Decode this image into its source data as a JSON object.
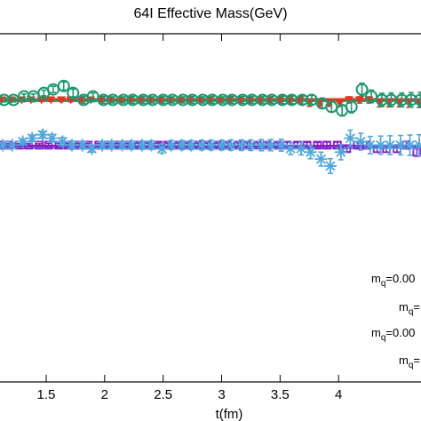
{
  "chart_data": {
    "type": "scatter",
    "title": "64I Effective Mass(GeV)",
    "xlabel": "t(fm)",
    "ylabel": "",
    "x_ticks": [
      "1.5",
      "2",
      "2.5",
      "3",
      "3.5",
      "4"
    ],
    "x_tick_values": [
      1.5,
      2.0,
      2.5,
      3.0,
      3.5,
      4.0
    ],
    "xlim": [
      1.09,
      4.72
    ],
    "ylim": [
      0.0,
      1.0
    ],
    "grid": false,
    "legend_position": "bottom-right",
    "legend": [
      {
        "base": "m",
        "sub": "q",
        "rest": "=0.00"
      },
      {
        "base": "m",
        "sub": "q",
        "rest": "="
      },
      {
        "base": "m",
        "sub": "q",
        "rest": "=0.00"
      },
      {
        "base": "m",
        "sub": "q",
        "rest": "="
      }
    ],
    "series": [
      {
        "marker": "triangle-down",
        "color": "#e8321e",
        "fit_value": 0.812,
        "x": [
          1.12,
          1.2,
          1.29,
          1.37,
          1.46,
          1.54,
          1.63,
          1.71,
          1.8,
          1.88,
          1.97,
          2.05,
          2.14,
          2.22,
          2.31,
          2.39,
          2.48,
          2.56,
          2.65,
          2.73,
          2.82,
          2.9,
          2.99,
          3.07,
          3.16,
          3.24,
          3.33,
          3.41,
          3.5,
          3.58,
          3.67,
          3.75,
          3.84,
          3.92,
          4.01,
          4.09,
          4.18,
          4.26,
          4.35,
          4.43,
          4.52,
          4.6,
          4.69
        ],
        "y": [
          0.81,
          0.81,
          0.81,
          0.81,
          0.81,
          0.81,
          0.81,
          0.81,
          0.81,
          0.81,
          0.81,
          0.81,
          0.81,
          0.81,
          0.81,
          0.81,
          0.81,
          0.81,
          0.81,
          0.81,
          0.81,
          0.81,
          0.81,
          0.81,
          0.81,
          0.81,
          0.81,
          0.81,
          0.81,
          0.81,
          0.81,
          0.8,
          0.8,
          0.8,
          0.8,
          0.81,
          0.81,
          0.81,
          0.8,
          0.8,
          0.8,
          0.8,
          0.8
        ],
        "err": [
          0.004,
          0.004,
          0.004,
          0.004,
          0.004,
          0.004,
          0.005,
          0.005,
          0.005,
          0.005,
          0.005,
          0.005,
          0.005,
          0.005,
          0.005,
          0.006,
          0.006,
          0.006,
          0.006,
          0.006,
          0.006,
          0.006,
          0.006,
          0.006,
          0.007,
          0.007,
          0.007,
          0.007,
          0.007,
          0.007,
          0.008,
          0.008,
          0.008,
          0.008,
          0.009,
          0.009,
          0.009,
          0.009,
          0.01,
          0.01,
          0.01,
          0.011,
          0.011
        ]
      },
      {
        "marker": "circle",
        "color": "#1a9a72",
        "fit_value": 0.807,
        "x": [
          1.14,
          1.22,
          1.31,
          1.39,
          1.48,
          1.56,
          1.65,
          1.73,
          1.82,
          1.9,
          1.99,
          2.07,
          2.16,
          2.24,
          2.33,
          2.41,
          2.5,
          2.58,
          2.67,
          2.75,
          2.84,
          2.92,
          3.01,
          3.09,
          3.18,
          3.26,
          3.35,
          3.43,
          3.52,
          3.6,
          3.69,
          3.77,
          3.86,
          3.94,
          4.03,
          4.11,
          4.2,
          4.28,
          4.37,
          4.45,
          4.54,
          4.62,
          4.7
        ],
        "y": [
          0.81,
          0.81,
          0.82,
          0.82,
          0.83,
          0.84,
          0.85,
          0.83,
          0.81,
          0.82,
          0.81,
          0.81,
          0.81,
          0.81,
          0.81,
          0.81,
          0.81,
          0.81,
          0.81,
          0.81,
          0.81,
          0.81,
          0.81,
          0.81,
          0.81,
          0.81,
          0.81,
          0.81,
          0.81,
          0.81,
          0.81,
          0.81,
          0.8,
          0.79,
          0.78,
          0.79,
          0.84,
          0.82,
          0.81,
          0.81,
          0.81,
          0.81,
          0.81
        ],
        "err": [
          0.006,
          0.006,
          0.007,
          0.007,
          0.008,
          0.009,
          0.012,
          0.011,
          0.01,
          0.01,
          0.01,
          0.009,
          0.009,
          0.01,
          0.01,
          0.009,
          0.01,
          0.009,
          0.009,
          0.01,
          0.009,
          0.01,
          0.009,
          0.01,
          0.01,
          0.01,
          0.01,
          0.01,
          0.011,
          0.011,
          0.012,
          0.013,
          0.014,
          0.015,
          0.016,
          0.017,
          0.018,
          0.018,
          0.019,
          0.02,
          0.02,
          0.021,
          0.022
        ]
      },
      {
        "marker": "square-open",
        "color": "#8b1bc4",
        "fit_value": 0.678,
        "x": [
          1.1,
          1.18,
          1.27,
          1.35,
          1.44,
          1.52,
          1.61,
          1.69,
          1.78,
          1.86,
          1.95,
          2.03,
          2.12,
          2.2,
          2.29,
          2.37,
          2.46,
          2.54,
          2.63,
          2.71,
          2.8,
          2.88,
          2.97,
          3.05,
          3.14,
          3.22,
          3.31,
          3.39,
          3.48,
          3.56,
          3.65,
          3.73,
          3.82,
          3.9,
          3.99,
          4.07,
          4.16,
          4.24,
          4.33,
          4.41,
          4.5,
          4.58,
          4.67
        ],
        "y": [
          0.68,
          0.68,
          0.68,
          0.68,
          0.68,
          0.68,
          0.68,
          0.68,
          0.68,
          0.68,
          0.68,
          0.68,
          0.68,
          0.68,
          0.68,
          0.68,
          0.68,
          0.68,
          0.68,
          0.68,
          0.68,
          0.68,
          0.68,
          0.68,
          0.68,
          0.68,
          0.68,
          0.68,
          0.68,
          0.68,
          0.68,
          0.68,
          0.68,
          0.68,
          0.68,
          0.67,
          0.68,
          0.68,
          0.67,
          0.67,
          0.67,
          0.68,
          0.66
        ],
        "err": [
          0.004,
          0.004,
          0.004,
          0.004,
          0.004,
          0.005,
          0.005,
          0.005,
          0.005,
          0.005,
          0.005,
          0.005,
          0.005,
          0.005,
          0.006,
          0.006,
          0.006,
          0.006,
          0.006,
          0.006,
          0.006,
          0.006,
          0.006,
          0.007,
          0.007,
          0.007,
          0.007,
          0.007,
          0.007,
          0.008,
          0.008,
          0.008,
          0.008,
          0.009,
          0.009,
          0.009,
          0.01,
          0.01,
          0.01,
          0.01,
          0.011,
          0.011,
          0.012
        ]
      },
      {
        "marker": "star",
        "color": "#4ea8e0",
        "fit_value": 0.672,
        "x": [
          1.13,
          1.21,
          1.3,
          1.38,
          1.47,
          1.55,
          1.64,
          1.72,
          1.81,
          1.89,
          1.98,
          2.06,
          2.15,
          2.23,
          2.32,
          2.4,
          2.49,
          2.57,
          2.66,
          2.74,
          2.83,
          2.91,
          3.0,
          3.08,
          3.17,
          3.25,
          3.34,
          3.42,
          3.51,
          3.59,
          3.68,
          3.76,
          3.85,
          3.93,
          4.02,
          4.1,
          4.19,
          4.27,
          4.36,
          4.44,
          4.53,
          4.61,
          4.69
        ],
        "y": [
          0.68,
          0.68,
          0.69,
          0.7,
          0.71,
          0.7,
          0.69,
          0.68,
          0.68,
          0.67,
          0.68,
          0.68,
          0.68,
          0.68,
          0.68,
          0.68,
          0.67,
          0.68,
          0.68,
          0.68,
          0.68,
          0.68,
          0.68,
          0.68,
          0.68,
          0.68,
          0.68,
          0.68,
          0.68,
          0.67,
          0.67,
          0.66,
          0.64,
          0.62,
          0.66,
          0.7,
          0.69,
          0.68,
          0.68,
          0.68,
          0.68,
          0.68,
          0.68
        ],
        "err": [
          0.006,
          0.007,
          0.008,
          0.009,
          0.01,
          0.011,
          0.012,
          0.012,
          0.011,
          0.01,
          0.011,
          0.011,
          0.011,
          0.012,
          0.012,
          0.012,
          0.013,
          0.013,
          0.013,
          0.013,
          0.014,
          0.014,
          0.014,
          0.015,
          0.015,
          0.015,
          0.016,
          0.016,
          0.017,
          0.017,
          0.018,
          0.019,
          0.02,
          0.021,
          0.022,
          0.023,
          0.024,
          0.025,
          0.026,
          0.027,
          0.028,
          0.029,
          0.03
        ]
      }
    ]
  }
}
